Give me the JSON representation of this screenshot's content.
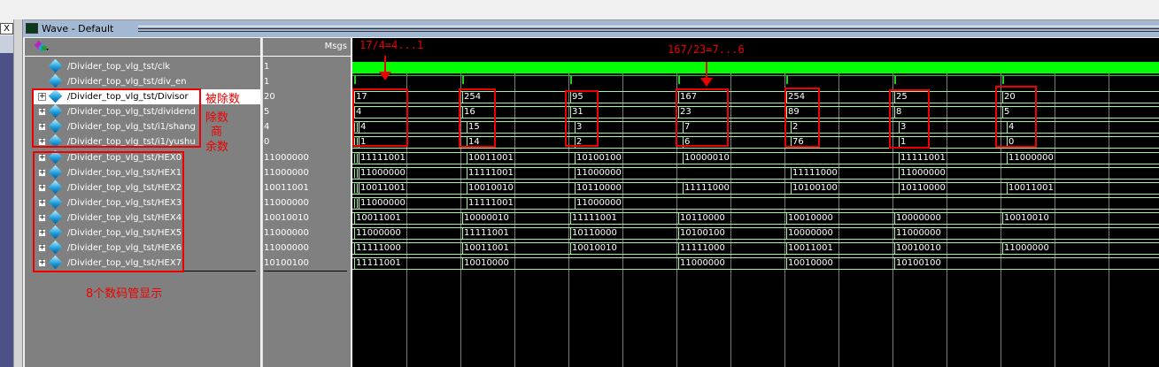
{
  "window": {
    "title": "Wave - Default",
    "close_label": "X"
  },
  "header": {
    "msgs_label": "Msgs"
  },
  "signals": [
    {
      "name": "/Divider_top_vlg_tst/clk",
      "value": "1",
      "expandable": false,
      "selected": false,
      "type": "clock"
    },
    {
      "name": "/Divider_top_vlg_tst/div_en",
      "value": "1",
      "expandable": false,
      "selected": false,
      "type": "pulse"
    },
    {
      "name": "/Divider_top_vlg_tst/Divisor",
      "value": "20",
      "expandable": true,
      "selected": true,
      "type": "bus",
      "values": [
        "17",
        "254",
        "95",
        "167",
        "254",
        "25",
        "20"
      ]
    },
    {
      "name": "/Divider_top_vlg_tst/dividend",
      "value": "5",
      "expandable": true,
      "selected": false,
      "type": "bus",
      "values": [
        "4",
        "16",
        "31",
        "23",
        "89",
        "8",
        "5"
      ]
    },
    {
      "name": "/Divider_top_vlg_tst/i1/shang",
      "value": "4",
      "expandable": true,
      "selected": false,
      "type": "bus",
      "values": [
        "4",
        "15",
        "3",
        "7",
        "2",
        "3",
        "4"
      ]
    },
    {
      "name": "/Divider_top_vlg_tst/i1/yushu",
      "value": "0",
      "expandable": true,
      "selected": false,
      "type": "bus",
      "values": [
        "1",
        "14",
        "2",
        "6",
        "76",
        "1",
        "0"
      ]
    },
    {
      "name": "/Divider_top_vlg_tst/HEX0",
      "value": "11000000",
      "expandable": true,
      "selected": false,
      "type": "bus",
      "values": [
        "11111001",
        "10011001",
        "10100100",
        "10000010",
        null,
        "11111001",
        "11000000"
      ]
    },
    {
      "name": "/Divider_top_vlg_tst/HEX1",
      "value": "11000000",
      "expandable": true,
      "selected": false,
      "type": "bus",
      "values": [
        "11000000",
        "11111001",
        "11000000",
        null,
        "11111000",
        "11000000",
        null
      ]
    },
    {
      "name": "/Divider_top_vlg_tst/HEX2",
      "value": "10011001",
      "expandable": true,
      "selected": false,
      "type": "bus",
      "values": [
        "10011001",
        "10010010",
        "10110000",
        "11111000",
        "10100100",
        "10110000",
        "10011001"
      ]
    },
    {
      "name": "/Divider_top_vlg_tst/HEX3",
      "value": "11000000",
      "expandable": true,
      "selected": false,
      "type": "bus",
      "values": [
        "11000000",
        "11111001",
        "11000000",
        null,
        null,
        null,
        null
      ]
    },
    {
      "name": "/Divider_top_vlg_tst/HEX4",
      "value": "10010010",
      "expandable": true,
      "selected": false,
      "type": "bus",
      "values": [
        "10011001",
        "10000010",
        "11111001",
        "10110000",
        "10010000",
        "10000000",
        "10010010"
      ]
    },
    {
      "name": "/Divider_top_vlg_tst/HEX5",
      "value": "11000000",
      "expandable": true,
      "selected": false,
      "type": "bus",
      "values": [
        "11000000",
        "11111001",
        "10110000",
        "10100100",
        "10000000",
        "11000000",
        null
      ]
    },
    {
      "name": "/Divider_top_vlg_tst/HEX6",
      "value": "11000000",
      "expandable": true,
      "selected": false,
      "type": "bus",
      "values": [
        "11111000",
        "10011001",
        "10010010",
        "11111000",
        "10011001",
        "10010010",
        "11000000"
      ]
    },
    {
      "name": "/Divider_top_vlg_tst/HEX7",
      "value": "10100100",
      "expandable": true,
      "selected": false,
      "type": "bus",
      "values": [
        "11111001",
        "10010000",
        null,
        "11000000",
        "10010000",
        "10100100",
        null
      ]
    }
  ],
  "annotations": {
    "divisor": "被除数",
    "dividend": "除数",
    "shang": "商",
    "yushu": "余数",
    "hex": "8个数码管显示",
    "example1": "17/4=4...1",
    "example2": "167/23=7...6"
  },
  "colors": {
    "clock": "#00ff00",
    "bus": "#a8f0a8",
    "annotation": "#e00000",
    "wave_bg": "#000000",
    "panel_bg": "#808080"
  }
}
